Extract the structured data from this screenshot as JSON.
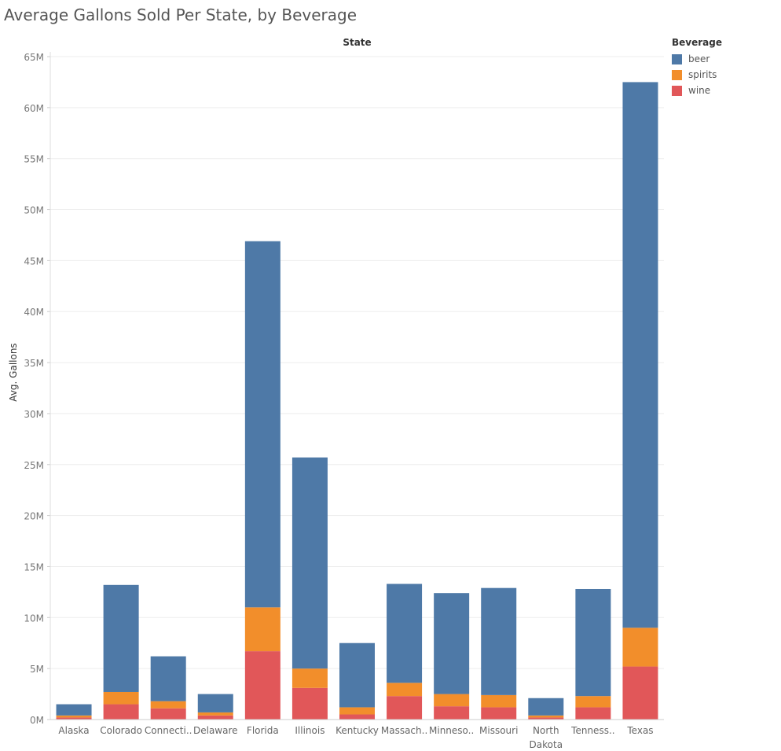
{
  "chart_data": {
    "type": "bar",
    "stacked": true,
    "title": "Average Gallons Sold Per State, by Beverage",
    "column_header": "State",
    "ylabel": "Avg. Gallons",
    "xlabel": "",
    "ylim": [
      0,
      65000000
    ],
    "y_ticks": [
      0,
      5000000,
      10000000,
      15000000,
      20000000,
      25000000,
      30000000,
      35000000,
      40000000,
      45000000,
      50000000,
      55000000,
      60000000,
      65000000
    ],
    "y_tick_labels": [
      "0M",
      "5M",
      "10M",
      "15M",
      "20M",
      "25M",
      "30M",
      "35M",
      "40M",
      "45M",
      "50M",
      "55M",
      "60M",
      "65M"
    ],
    "categories": [
      "Alaska",
      "Colorado",
      "Connecti..",
      "Delaware",
      "Florida",
      "Illinois",
      "Kentucky",
      "Massach..",
      "Minneso..",
      "Missouri",
      "North Dakota",
      "Tenness..",
      "Texas"
    ],
    "category_lines": [
      [
        "Alaska"
      ],
      [
        "Colorado"
      ],
      [
        "Connecti.."
      ],
      [
        "Delaware"
      ],
      [
        "Florida"
      ],
      [
        "Illinois"
      ],
      [
        "Kentucky"
      ],
      [
        "Massach.."
      ],
      [
        "Minneso.."
      ],
      [
        "Missouri"
      ],
      [
        "North",
        "Dakota"
      ],
      [
        "Tenness.."
      ],
      [
        "Texas"
      ]
    ],
    "series": [
      {
        "name": "wine",
        "color": "#e15759",
        "values": [
          200000,
          1500000,
          1100000,
          400000,
          6700000,
          3100000,
          500000,
          2300000,
          1300000,
          1200000,
          200000,
          1200000,
          5200000
        ]
      },
      {
        "name": "spirits",
        "color": "#f28e2b",
        "values": [
          200000,
          1200000,
          700000,
          300000,
          4300000,
          1900000,
          700000,
          1300000,
          1200000,
          1200000,
          200000,
          1100000,
          3800000
        ]
      },
      {
        "name": "beer",
        "color": "#4e79a7",
        "values": [
          1100000,
          10500000,
          4400000,
          1800000,
          35900000,
          20700000,
          6300000,
          9700000,
          9900000,
          10500000,
          1700000,
          10500000,
          53500000
        ]
      }
    ],
    "grid": true,
    "legend_position": "top-right"
  },
  "legend": {
    "title": "Beverage",
    "items": [
      {
        "name": "beer",
        "color": "#4e79a7"
      },
      {
        "name": "spirits",
        "color": "#f28e2b"
      },
      {
        "name": "wine",
        "color": "#e15759"
      }
    ]
  }
}
